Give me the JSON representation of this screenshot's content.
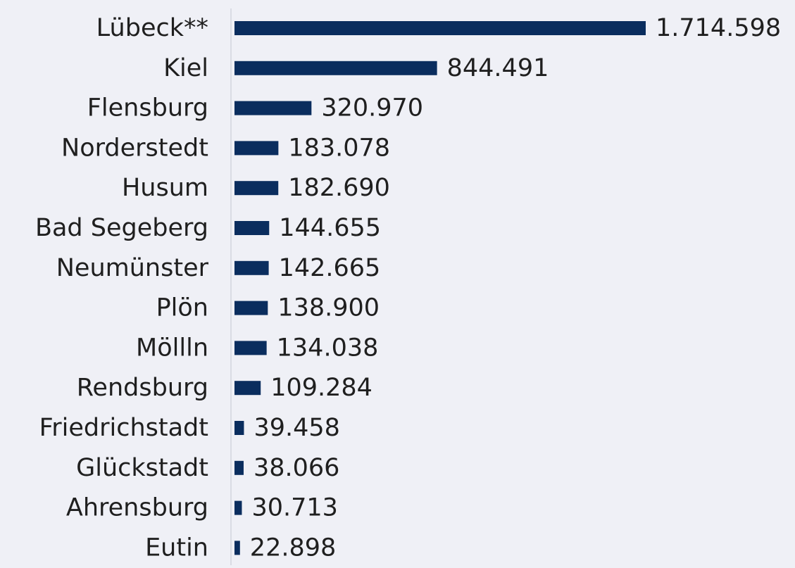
{
  "chart_data": {
    "type": "bar",
    "orientation": "horizontal",
    "title": "",
    "xlabel": "",
    "ylabel": "",
    "categories": [
      "Lübeck**",
      "Kiel",
      "Flensburg",
      "Norderstedt",
      "Husum",
      "Bad Segeberg",
      "Neumünster",
      "Plön",
      "Möllln",
      "Rendsburg",
      "Friedrichstadt",
      "Glückstadt",
      "Ahrensburg",
      "Eutin"
    ],
    "values": [
      1714598,
      844491,
      320970,
      183078,
      182690,
      144655,
      142665,
      138900,
      134038,
      109284,
      39458,
      38066,
      30713,
      22898
    ],
    "value_labels": [
      "1.714.598",
      "844.491",
      "320.970",
      "183.078",
      "182.690",
      "144.655",
      "142.665",
      "138.900",
      "134.038",
      "109.284",
      "39.458",
      "38.066",
      "30.713",
      "22.898"
    ],
    "xlim": [
      0,
      1714598
    ],
    "grid": false,
    "legend": "none",
    "colors": {
      "bar": "#0a2d5e",
      "text": "#1f1f1f",
      "axis": "#d4d6de",
      "background": "#eff0f6"
    }
  }
}
